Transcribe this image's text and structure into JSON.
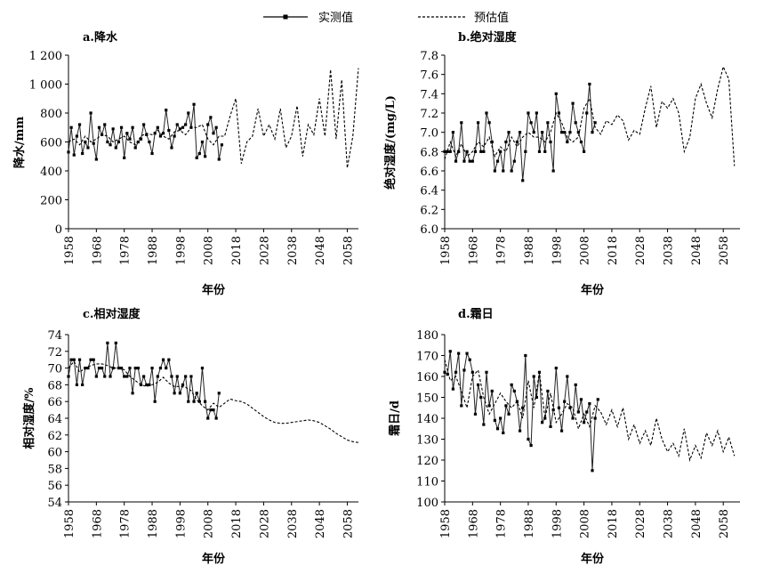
{
  "legend": {
    "observed": "实测值",
    "predicted": "预估值"
  },
  "chart_data": [
    {
      "type": "line",
      "title": "a.降水",
      "xlabel": "年份",
      "ylabel": "降水/mm",
      "ylim": [
        0,
        1200
      ],
      "yticks": [
        0,
        200,
        400,
        600,
        800,
        1000,
        1200
      ],
      "ytick_labels": [
        "0",
        "200",
        "400",
        "600",
        "800",
        "1 000",
        "1 200"
      ],
      "xlim": [
        1958,
        2062
      ],
      "xticks": [
        "1958",
        "1968",
        "1978",
        "1988",
        "1998",
        "2008",
        "2018",
        "2028",
        "2038",
        "2048",
        "2058"
      ],
      "series": [
        {
          "name": "实测值",
          "x_start": 1958,
          "x_step": 1,
          "values": [
            530,
            700,
            510,
            640,
            720,
            520,
            600,
            560,
            800,
            590,
            480,
            700,
            650,
            720,
            600,
            580,
            690,
            560,
            600,
            700,
            490,
            660,
            620,
            700,
            560,
            600,
            620,
            720,
            650,
            600,
            520,
            660,
            700,
            640,
            660,
            820,
            680,
            560,
            640,
            720,
            690,
            700,
            720,
            800,
            700,
            860,
            490,
            520,
            600,
            500,
            720,
            770,
            660,
            700,
            480,
            580
          ]
        },
        {
          "name": "预估值",
          "x_start": 1958,
          "x_step": 2,
          "values": [
            600,
            620,
            580,
            640,
            600,
            620,
            650,
            640,
            600,
            620,
            640,
            600,
            580,
            640,
            660,
            650,
            680,
            640,
            620,
            670,
            680,
            650,
            700,
            700,
            720,
            620,
            580,
            640,
            640,
            780,
            900,
            450,
            600,
            640,
            830,
            640,
            720,
            620,
            830,
            560,
            640,
            850,
            500,
            720,
            650,
            900,
            640,
            1100,
            620,
            1030,
            420,
            640,
            1110
          ]
        }
      ]
    },
    {
      "type": "line",
      "title": "b.绝对湿度",
      "xlabel": "年份",
      "ylabel": "绝对湿度/(mg/L)",
      "ylim": [
        6.0,
        7.8
      ],
      "yticks": [
        6.0,
        6.2,
        6.4,
        6.6,
        6.8,
        7.0,
        7.2,
        7.4,
        7.6,
        7.8
      ],
      "ytick_labels": [
        "6.0",
        "6.2",
        "6.4",
        "6.6",
        "6.8",
        "7.0",
        "7.2",
        "7.4",
        "7.6",
        "7.8"
      ],
      "xlim": [
        1958,
        2064
      ],
      "xticks": [
        "1958",
        "1968",
        "1978",
        "1988",
        "1998",
        "2008",
        "2018",
        "2028",
        "2038",
        "2048",
        "2058"
      ],
      "series": [
        {
          "name": "实测值",
          "x_start": 1958,
          "x_step": 1,
          "values": [
            6.8,
            6.8,
            6.8,
            7.0,
            6.7,
            6.8,
            7.1,
            6.7,
            6.8,
            6.7,
            6.7,
            6.8,
            7.1,
            6.8,
            6.8,
            7.2,
            7.1,
            6.9,
            6.6,
            6.7,
            6.8,
            6.6,
            6.9,
            7.0,
            6.6,
            6.7,
            6.9,
            7.0,
            6.5,
            6.8,
            7.2,
            7.1,
            7.0,
            7.2,
            6.8,
            7.0,
            6.8,
            7.1,
            6.9,
            6.6,
            7.4,
            7.2,
            7.0,
            7.0,
            6.9,
            7.0,
            7.3,
            7.1,
            7.0,
            6.9,
            6.8,
            7.2,
            7.5,
            7.0,
            7.1
          ]
        },
        {
          "name": "预估值",
          "x_start": 1958,
          "x_step": 2,
          "values": [
            6.72,
            6.9,
            6.75,
            6.88,
            6.75,
            6.8,
            6.9,
            6.85,
            6.95,
            6.75,
            6.85,
            6.8,
            6.95,
            6.85,
            6.95,
            7.0,
            6.95,
            6.95,
            6.9,
            7.0,
            7.2,
            7.1,
            6.95,
            6.9,
            6.95,
            7.25,
            7.35,
            7.05,
            6.98,
            7.12,
            7.08,
            7.18,
            7.12,
            6.92,
            7.02,
            6.98,
            7.25,
            7.48,
            7.05,
            7.32,
            7.25,
            7.35,
            7.2,
            6.8,
            6.95,
            7.35,
            7.5,
            7.3,
            7.15,
            7.45,
            7.68,
            7.55,
            6.65
          ]
        }
      ]
    },
    {
      "type": "line",
      "title": "c.相对湿度",
      "xlabel": "年份",
      "ylabel": "相对湿度/%",
      "ylim": [
        54,
        74
      ],
      "yticks": [
        54,
        56,
        58,
        60,
        62,
        64,
        66,
        68,
        70,
        72,
        74
      ],
      "ytick_labels": [
        "54",
        "56",
        "58",
        "60",
        "62",
        "64",
        "66",
        "68",
        "70",
        "72",
        "74"
      ],
      "xlim": [
        1958,
        2062
      ],
      "xticks": [
        "1958",
        "1968",
        "1978",
        "1988",
        "1998",
        "2008",
        "2018",
        "2028",
        "2038",
        "2048",
        "2058"
      ],
      "series": [
        {
          "name": "实测值",
          "x_start": 1958,
          "x_step": 1,
          "values": [
            69,
            71,
            71,
            68,
            71,
            68,
            70,
            70,
            71,
            71,
            69,
            70,
            70,
            69,
            73,
            69,
            70,
            73,
            70,
            70,
            69,
            69,
            70,
            67,
            70,
            70,
            68,
            69,
            68,
            68,
            70,
            66,
            69,
            70,
            71,
            70,
            71,
            69,
            67,
            69,
            67,
            68,
            69,
            66,
            69,
            66,
            67,
            66,
            70,
            66,
            64,
            65,
            65,
            64,
            67
          ]
        },
        {
          "name": "预估值",
          "x_start": 1958,
          "x_step": 2,
          "values": [
            70,
            70.8,
            69.5,
            70,
            70.3,
            70.5,
            70.5,
            70.3,
            70,
            70,
            69.8,
            69,
            68.5,
            68,
            67.8,
            68,
            68.3,
            68.9,
            68.2,
            67.8,
            67.8,
            67.7,
            67.3,
            66.2,
            65.5,
            65,
            65.8,
            65.3,
            65.8,
            66.3,
            66.1,
            66,
            65.7,
            65.2,
            64.7,
            64.2,
            63.8,
            63.5,
            63.4,
            63.4,
            63.5,
            63.6,
            63.7,
            63.8,
            63.7,
            63.5,
            63.1,
            62.7,
            62.2,
            61.8,
            61.4,
            61.2,
            61.1
          ]
        }
      ]
    },
    {
      "type": "line",
      "title": "d.霜日",
      "xlabel": "年份",
      "ylabel": "霜日/d",
      "ylim": [
        100,
        180
      ],
      "yticks": [
        100,
        110,
        120,
        130,
        140,
        150,
        160,
        170,
        180
      ],
      "ytick_labels": [
        "100",
        "110",
        "120",
        "130",
        "140",
        "150",
        "160",
        "170",
        "180"
      ],
      "xlim": [
        1958,
        2064
      ],
      "xticks": [
        "1958",
        "1968",
        "1978",
        "1988",
        "1998",
        "2008",
        "2018",
        "2028",
        "2038",
        "2048",
        "2058"
      ],
      "series": [
        {
          "name": "实测值",
          "x_start": 1958,
          "x_step": 1,
          "values": [
            162,
            161,
            172,
            154,
            162,
            171,
            146,
            163,
            171,
            168,
            162,
            142,
            156,
            150,
            137,
            162,
            146,
            153,
            139,
            135,
            140,
            133,
            146,
            142,
            156,
            153,
            148,
            134,
            145,
            170,
            130,
            127,
            160,
            150,
            162,
            138,
            140,
            153,
            136,
            144,
            164,
            145,
            134,
            148,
            160,
            145,
            140,
            156,
            143,
            149,
            138,
            143,
            147,
            115,
            140,
            149
          ]
        },
        {
          "name": "预估值",
          "x_start": 1958,
          "x_step": 2,
          "values": [
            168,
            158,
            160,
            153,
            145,
            160,
            163,
            150,
            142,
            147,
            152,
            148,
            145,
            148,
            140,
            158,
            145,
            162,
            140,
            152,
            138,
            142,
            147,
            145,
            135,
            142,
            136,
            146,
            143,
            137,
            144,
            136,
            145,
            130,
            137,
            128,
            134,
            127,
            140,
            130,
            124,
            128,
            122,
            135,
            120,
            127,
            121,
            133,
            127,
            134,
            124,
            131,
            122
          ]
        }
      ]
    }
  ]
}
